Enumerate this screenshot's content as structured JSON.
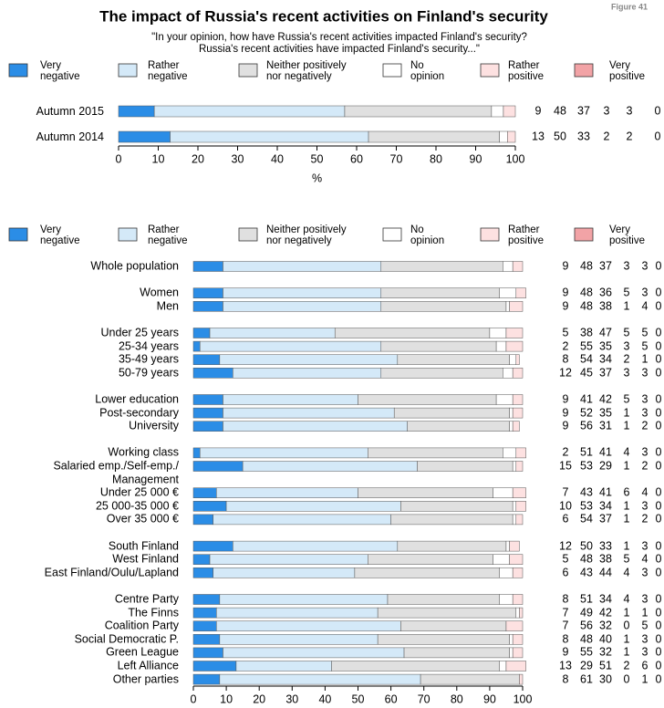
{
  "chart_data": [
    {
      "type": "stacked-barh",
      "title": "The impact of Russia's recent activities on Finland's security",
      "figure_label": "Figure 41",
      "subtitle": "\"In your opinion, how have Russia's recent activities impacted Finland's security?\nRussia's recent activities have impacted Finland's security...\"",
      "categories": [
        "Autumn 2015",
        "Autumn 2014"
      ],
      "series": [
        {
          "name": "Very\nnegative",
          "color": "#2b8de6",
          "values": [
            9,
            13
          ]
        },
        {
          "name": "Rather\nnegative",
          "color": "#d4e9f8",
          "values": [
            48,
            50
          ]
        },
        {
          "name": "Neither positively\nnor negatively",
          "color": "#e0e0e0",
          "values": [
            37,
            33
          ]
        },
        {
          "name": "No\nopinion",
          "color": "#ffffff",
          "values": [
            3,
            2
          ]
        },
        {
          "name": "Rather\npositive",
          "color": "#fde1e1",
          "values": [
            3,
            2
          ]
        },
        {
          "name": "Very\npositive",
          "color": "#f2a3a6",
          "values": [
            0,
            0
          ]
        }
      ],
      "xlim": [
        0,
        100
      ],
      "xticks": [
        0,
        10,
        20,
        30,
        40,
        50,
        60,
        70,
        80,
        90,
        100
      ],
      "xlabel": "%"
    },
    {
      "type": "stacked-barh",
      "categories": [
        "Whole population",
        null,
        "Women",
        "Men",
        null,
        "Under 25 years",
        "25-34 years",
        "35-49 years",
        "50-79 years",
        null,
        "Lower education",
        "Post-secondary",
        "University",
        null,
        "Working class",
        "Salaried emp./Self-emp./\nManagement",
        "Under 25 000 €",
        "25 000-35 000 €",
        "Over 35 000 €",
        null,
        "South Finland",
        "West Finland",
        "East Finland/Oulu/Lapland",
        null,
        "Centre Party",
        "The Finns",
        "Coalition Party",
        "Social Democratic P.",
        "Green League",
        "Left Alliance",
        "Other parties"
      ],
      "series": [
        {
          "name": "Very\nnegative",
          "color": "#2b8de6",
          "values": [
            9,
            null,
            9,
            9,
            null,
            5,
            2,
            8,
            12,
            null,
            9,
            9,
            9,
            null,
            2,
            15,
            7,
            10,
            6,
            null,
            12,
            5,
            6,
            null,
            8,
            7,
            7,
            8,
            9,
            13,
            8
          ]
        },
        {
          "name": "Rather\nnegative",
          "color": "#d4e9f8",
          "values": [
            48,
            null,
            48,
            48,
            null,
            38,
            55,
            54,
            45,
            null,
            41,
            52,
            56,
            null,
            51,
            53,
            43,
            53,
            54,
            null,
            50,
            48,
            43,
            null,
            51,
            49,
            56,
            48,
            55,
            29,
            61
          ]
        },
        {
          "name": "Neither positively\nnor negatively",
          "color": "#e0e0e0",
          "values": [
            37,
            null,
            36,
            38,
            null,
            47,
            35,
            34,
            37,
            null,
            42,
            35,
            31,
            null,
            41,
            29,
            41,
            34,
            37,
            null,
            33,
            38,
            44,
            null,
            34,
            42,
            32,
            40,
            32,
            51,
            30
          ]
        },
        {
          "name": "No\nopinion",
          "color": "#ffffff",
          "values": [
            3,
            null,
            5,
            1,
            null,
            5,
            3,
            2,
            3,
            null,
            5,
            1,
            1,
            null,
            4,
            1,
            6,
            1,
            1,
            null,
            1,
            5,
            4,
            null,
            4,
            1,
            0,
            1,
            1,
            2,
            0
          ]
        },
        {
          "name": "Rather\npositive",
          "color": "#fde1e1",
          "values": [
            3,
            null,
            3,
            4,
            null,
            5,
            5,
            1,
            3,
            null,
            3,
            3,
            2,
            null,
            3,
            2,
            4,
            3,
            2,
            null,
            3,
            4,
            3,
            null,
            3,
            1,
            5,
            3,
            3,
            6,
            1
          ]
        },
        {
          "name": "Very\npositive",
          "color": "#f2a3a6",
          "values": [
            0,
            null,
            0,
            0,
            null,
            0,
            0,
            0,
            0,
            null,
            0,
            0,
            0,
            null,
            0,
            0,
            0,
            0,
            0,
            null,
            0,
            0,
            0,
            null,
            0,
            0,
            0,
            0,
            0,
            0,
            0
          ]
        }
      ],
      "xlim": [
        0,
        100
      ],
      "xticks": [
        0,
        10,
        20,
        30,
        40,
        50,
        60,
        70,
        80,
        90,
        100
      ]
    }
  ]
}
